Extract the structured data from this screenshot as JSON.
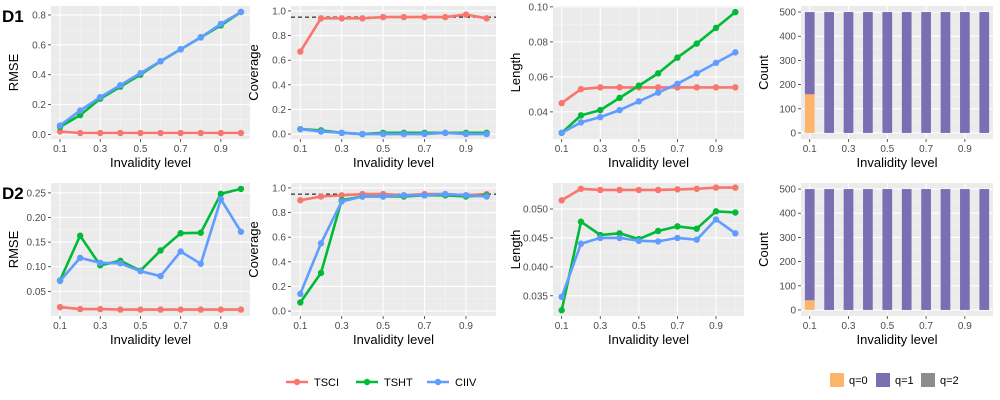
{
  "rows": [
    "D1",
    "D2"
  ],
  "legend_methods": [
    {
      "name": "TSCI",
      "color": "#F8766D"
    },
    {
      "name": "TSHT",
      "color": "#00BA38"
    },
    {
      "name": "CIIV",
      "color": "#619CFF"
    }
  ],
  "legend_counts": [
    {
      "name": "q=0",
      "color": "#FDB56B"
    },
    {
      "name": "q=1",
      "color": "#7A6FB3"
    },
    {
      "name": "q=2",
      "color": "#8C8C8C"
    }
  ],
  "chart_data": [
    {
      "type": "line",
      "row": "D1",
      "ylabel": "RMSE",
      "xlabel": "Invalidity level",
      "x": [
        0.1,
        0.2,
        0.3,
        0.4,
        0.5,
        0.6,
        0.7,
        0.8,
        0.9,
        1.0
      ],
      "xticks": [
        "0.1",
        "0.3",
        "0.5",
        "0.7",
        "0.9"
      ],
      "ylim": [
        -0.03,
        0.86
      ],
      "yticks": [
        0.0,
        0.2,
        0.4,
        0.6,
        0.8
      ],
      "ytick_labels": [
        "0.0",
        "0.2",
        "0.4",
        "0.6",
        "0.8"
      ],
      "series": [
        {
          "name": "TSCI",
          "values": [
            0.02,
            0.01,
            0.01,
            0.01,
            0.01,
            0.01,
            0.01,
            0.01,
            0.01,
            0.01
          ]
        },
        {
          "name": "TSHT",
          "values": [
            0.05,
            0.13,
            0.24,
            0.32,
            0.4,
            0.49,
            0.57,
            0.65,
            0.73,
            0.82
          ]
        },
        {
          "name": "CIIV",
          "values": [
            0.06,
            0.16,
            0.25,
            0.33,
            0.41,
            0.49,
            0.57,
            0.65,
            0.74,
            0.82
          ]
        }
      ]
    },
    {
      "type": "line",
      "row": "D1",
      "ylabel": "Coverage",
      "xlabel": "Invalidity level",
      "x": [
        0.1,
        0.2,
        0.3,
        0.4,
        0.5,
        0.6,
        0.7,
        0.8,
        0.9,
        1.0
      ],
      "xticks": [
        "0.1",
        "0.3",
        "0.5",
        "0.7",
        "0.9"
      ],
      "ylim": [
        -0.04,
        1.04
      ],
      "yticks": [
        0.0,
        0.2,
        0.4,
        0.6,
        0.8,
        1.0
      ],
      "ytick_labels": [
        "0.0",
        "0.2",
        "0.4",
        "0.6",
        "0.8",
        "1.0"
      ],
      "reference_line": 0.95,
      "series": [
        {
          "name": "TSCI",
          "values": [
            0.67,
            0.94,
            0.94,
            0.94,
            0.95,
            0.95,
            0.95,
            0.95,
            0.97,
            0.94
          ]
        },
        {
          "name": "TSHT",
          "values": [
            0.04,
            0.03,
            0.01,
            0.0,
            0.01,
            0.01,
            0.01,
            0.01,
            0.01,
            0.01
          ]
        },
        {
          "name": "CIIV",
          "values": [
            0.04,
            0.02,
            0.01,
            0.0,
            0.0,
            0.0,
            0.0,
            0.01,
            0.0,
            0.0
          ]
        }
      ]
    },
    {
      "type": "line",
      "row": "D1",
      "ylabel": "Length",
      "xlabel": "Invalidity level",
      "x": [
        0.1,
        0.2,
        0.3,
        0.4,
        0.5,
        0.6,
        0.7,
        0.8,
        0.9,
        1.0
      ],
      "xticks": [
        "0.1",
        "0.3",
        "0.5",
        "0.7",
        "0.9"
      ],
      "ylim": [
        0.0245,
        0.1005
      ],
      "yticks": [
        0.04,
        0.06,
        0.08,
        0.1
      ],
      "ytick_labels": [
        "0.04",
        "0.06",
        "0.08",
        "0.10"
      ],
      "series": [
        {
          "name": "TSCI",
          "values": [
            0.045,
            0.053,
            0.054,
            0.054,
            0.054,
            0.054,
            0.054,
            0.054,
            0.054,
            0.054
          ]
        },
        {
          "name": "TSHT",
          "values": [
            0.028,
            0.038,
            0.041,
            0.048,
            0.055,
            0.062,
            0.071,
            0.079,
            0.088,
            0.097
          ]
        },
        {
          "name": "CIIV",
          "values": [
            0.028,
            0.034,
            0.037,
            0.041,
            0.046,
            0.051,
            0.056,
            0.062,
            0.068,
            0.074
          ]
        }
      ]
    },
    {
      "type": "stacked_bar",
      "row": "D1",
      "ylabel": "Count",
      "xlabel": "Invalidity level",
      "x": [
        0.1,
        0.2,
        0.3,
        0.4,
        0.5,
        0.6,
        0.7,
        0.8,
        0.9,
        1.0
      ],
      "xticks": [
        "0.1",
        "0.3",
        "0.5",
        "0.7",
        "0.9"
      ],
      "ylim": [
        -25,
        525
      ],
      "yticks": [
        0,
        100,
        200,
        300,
        400,
        500
      ],
      "ytick_labels": [
        "0",
        "100",
        "200",
        "300",
        "400",
        "500"
      ],
      "series": [
        {
          "name": "q=0",
          "values": [
            160,
            0,
            0,
            0,
            0,
            0,
            0,
            0,
            0,
            0
          ]
        },
        {
          "name": "q=1",
          "values": [
            340,
            500,
            500,
            500,
            500,
            500,
            500,
            500,
            500,
            500
          ]
        },
        {
          "name": "q=2",
          "values": [
            0,
            0,
            0,
            0,
            0,
            0,
            0,
            0,
            0,
            0
          ]
        }
      ]
    },
    {
      "type": "line",
      "row": "D2",
      "ylabel": "RMSE",
      "xlabel": "Invalidity level",
      "x": [
        0.1,
        0.2,
        0.3,
        0.4,
        0.5,
        0.6,
        0.7,
        0.8,
        0.9,
        1.0
      ],
      "xticks": [
        "0.1",
        "0.3",
        "0.5",
        "0.7",
        "0.9"
      ],
      "ylim": [
        0.0,
        0.27
      ],
      "yticks": [
        0.05,
        0.1,
        0.15,
        0.2,
        0.25
      ],
      "ytick_labels": [
        "0.05",
        "0.10",
        "0.15",
        "0.20",
        "0.25"
      ],
      "series": [
        {
          "name": "TSCI",
          "values": [
            0.018,
            0.014,
            0.014,
            0.013,
            0.013,
            0.013,
            0.013,
            0.013,
            0.013,
            0.013
          ]
        },
        {
          "name": "TSHT",
          "values": [
            0.072,
            0.163,
            0.103,
            0.112,
            0.092,
            0.133,
            0.168,
            0.169,
            0.248,
            0.258
          ]
        },
        {
          "name": "CIIV",
          "values": [
            0.071,
            0.118,
            0.108,
            0.107,
            0.091,
            0.081,
            0.131,
            0.106,
            0.237,
            0.171
          ]
        }
      ]
    },
    {
      "type": "line",
      "row": "D2",
      "ylabel": "Coverage",
      "xlabel": "Invalidity level",
      "x": [
        0.1,
        0.2,
        0.3,
        0.4,
        0.5,
        0.6,
        0.7,
        0.8,
        0.9,
        1.0
      ],
      "xticks": [
        "0.1",
        "0.3",
        "0.5",
        "0.7",
        "0.9"
      ],
      "ylim": [
        -0.04,
        1.04
      ],
      "yticks": [
        0.0,
        0.2,
        0.4,
        0.6,
        0.8,
        1.0
      ],
      "ytick_labels": [
        "0.0",
        "0.2",
        "0.4",
        "0.6",
        "0.8",
        "1.0"
      ],
      "reference_line": 0.95,
      "series": [
        {
          "name": "TSCI",
          "values": [
            0.9,
            0.93,
            0.94,
            0.95,
            0.95,
            0.94,
            0.95,
            0.95,
            0.94,
            0.95
          ]
        },
        {
          "name": "TSHT",
          "values": [
            0.07,
            0.31,
            0.9,
            0.93,
            0.93,
            0.93,
            0.94,
            0.94,
            0.93,
            0.94
          ]
        },
        {
          "name": "CIIV",
          "values": [
            0.14,
            0.55,
            0.89,
            0.93,
            0.93,
            0.94,
            0.94,
            0.95,
            0.94,
            0.93
          ]
        }
      ]
    },
    {
      "type": "line",
      "row": "D2",
      "ylabel": "Length",
      "xlabel": "Invalidity level",
      "x": [
        0.1,
        0.2,
        0.3,
        0.4,
        0.5,
        0.6,
        0.7,
        0.8,
        0.9,
        1.0
      ],
      "xticks": [
        "0.1",
        "0.3",
        "0.5",
        "0.7",
        "0.9"
      ],
      "ylim": [
        0.0315,
        0.0545
      ],
      "yticks": [
        0.035,
        0.04,
        0.045,
        0.05
      ],
      "ytick_labels": [
        "0.035",
        "0.040",
        "0.045",
        "0.050"
      ],
      "series": [
        {
          "name": "TSCI",
          "values": [
            0.0515,
            0.0535,
            0.0533,
            0.0533,
            0.0533,
            0.0533,
            0.0534,
            0.0535,
            0.0537,
            0.0537
          ]
        },
        {
          "name": "TSHT",
          "values": [
            0.0325,
            0.0478,
            0.0455,
            0.0458,
            0.0448,
            0.0462,
            0.047,
            0.0466,
            0.0496,
            0.0494
          ]
        },
        {
          "name": "CIIV",
          "values": [
            0.0348,
            0.044,
            0.045,
            0.045,
            0.0445,
            0.0444,
            0.045,
            0.0447,
            0.0482,
            0.0458
          ]
        }
      ]
    },
    {
      "type": "stacked_bar",
      "row": "D2",
      "ylabel": "Count",
      "xlabel": "Invalidity level",
      "x": [
        0.1,
        0.2,
        0.3,
        0.4,
        0.5,
        0.6,
        0.7,
        0.8,
        0.9,
        1.0
      ],
      "xticks": [
        "0.1",
        "0.3",
        "0.5",
        "0.7",
        "0.9"
      ],
      "ylim": [
        -25,
        525
      ],
      "yticks": [
        0,
        100,
        200,
        300,
        400,
        500
      ],
      "ytick_labels": [
        "0",
        "100",
        "200",
        "300",
        "400",
        "500"
      ],
      "series": [
        {
          "name": "q=0",
          "values": [
            40,
            0,
            0,
            0,
            0,
            0,
            0,
            0,
            0,
            0
          ]
        },
        {
          "name": "q=1",
          "values": [
            460,
            500,
            500,
            500,
            500,
            500,
            500,
            500,
            500,
            500
          ]
        },
        {
          "name": "q=2",
          "values": [
            0,
            0,
            0,
            0,
            0,
            0,
            0,
            0,
            0,
            0
          ]
        }
      ]
    }
  ]
}
